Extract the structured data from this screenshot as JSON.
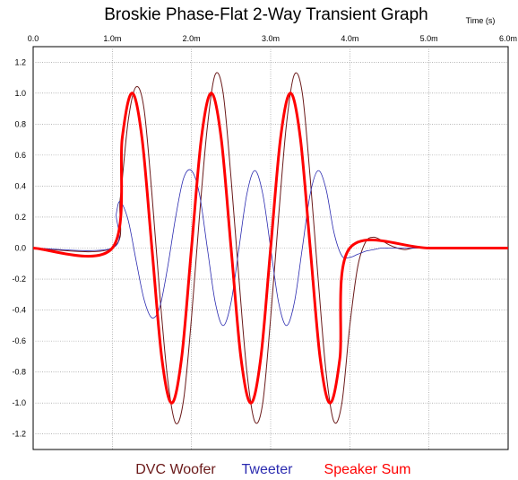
{
  "chart_data": {
    "type": "line",
    "title": "Broskie Phase-Flat 2-Way Transient Graph",
    "xlabel": "Time  (s)",
    "ylabel": "",
    "xlim": [
      0,
      6.0
    ],
    "ylim": [
      -1.3,
      1.3
    ],
    "grid": true,
    "legend_position": "bottom",
    "x_ticks": [
      {
        "value": 0,
        "label": "0.0"
      },
      {
        "value": 1,
        "label": "1.0m"
      },
      {
        "value": 2,
        "label": "2.0m"
      },
      {
        "value": 3,
        "label": "3.0m"
      },
      {
        "value": 4,
        "label": "4.0m"
      },
      {
        "value": 5,
        "label": "5.0m"
      },
      {
        "value": 6,
        "label": "6.0m"
      }
    ],
    "y_ticks": [
      {
        "value": 1.2,
        "label": "1.2"
      },
      {
        "value": 1.0,
        "label": "1.0"
      },
      {
        "value": 0.8,
        "label": "0.8"
      },
      {
        "value": 0.6,
        "label": "0.6"
      },
      {
        "value": 0.4,
        "label": "0.4"
      },
      {
        "value": 0.2,
        "label": "0.2"
      },
      {
        "value": 0.0,
        "label": "0.0"
      },
      {
        "value": -0.2,
        "label": "-0.2"
      },
      {
        "value": -0.4,
        "label": "-0.4"
      },
      {
        "value": -0.6,
        "label": "-0.6"
      },
      {
        "value": -0.8,
        "label": "-0.8"
      },
      {
        "value": -1.0,
        "label": "-1.0"
      },
      {
        "value": -1.2,
        "label": "-1.2"
      }
    ],
    "series": [
      {
        "name": "DVC Woofer",
        "color": "#6b1a1a",
        "x": [
          0,
          1.0,
          1.1,
          1.2,
          1.3,
          1.4,
          1.5,
          1.6,
          1.7,
          1.8,
          1.9,
          2.0,
          2.1,
          2.2,
          2.3,
          2.4,
          2.5,
          2.6,
          2.7,
          2.8,
          2.9,
          3.0,
          3.1,
          3.2,
          3.3,
          3.4,
          3.5,
          3.6,
          3.7,
          3.8,
          3.9,
          4.0,
          4.1,
          4.2,
          4.3,
          4.4,
          4.5,
          4.6,
          4.7,
          4.8,
          5.0,
          6.0
        ],
        "y": [
          0,
          0,
          0.32,
          0.82,
          1.04,
          0.9,
          0.35,
          -0.3,
          -0.85,
          -1.13,
          -0.98,
          -0.45,
          0.2,
          0.78,
          1.12,
          1.0,
          0.45,
          -0.2,
          -0.8,
          -1.12,
          -1.0,
          -0.45,
          0.2,
          0.8,
          1.12,
          1.0,
          0.45,
          -0.2,
          -0.8,
          -1.12,
          -1.0,
          -0.5,
          -0.12,
          0.04,
          0.07,
          0.05,
          0.02,
          0.0,
          -0.01,
          0.0,
          0,
          0
        ]
      },
      {
        "name": "Tweeter",
        "color": "#2b2bb0",
        "x": [
          0,
          1.0,
          1.05,
          1.1,
          1.2,
          1.3,
          1.4,
          1.5,
          1.6,
          1.7,
          1.8,
          1.9,
          2.0,
          2.1,
          2.2,
          2.3,
          2.4,
          2.5,
          2.6,
          2.7,
          2.8,
          2.9,
          3.0,
          3.1,
          3.2,
          3.3,
          3.4,
          3.5,
          3.6,
          3.7,
          3.8,
          3.9,
          4.0,
          4.1,
          4.2,
          4.3,
          4.4,
          4.5,
          4.6,
          4.7,
          4.8,
          5.0,
          6.0
        ],
        "y": [
          0,
          0,
          0.22,
          0.3,
          0.18,
          -0.08,
          -0.33,
          -0.45,
          -0.38,
          -0.12,
          0.2,
          0.45,
          0.5,
          0.35,
          0.0,
          -0.35,
          -0.5,
          -0.35,
          0.0,
          0.35,
          0.5,
          0.35,
          0.0,
          -0.35,
          -0.5,
          -0.35,
          0.0,
          0.35,
          0.5,
          0.38,
          0.1,
          -0.05,
          -0.06,
          -0.04,
          -0.02,
          -0.01,
          0.0,
          0,
          0,
          0,
          0,
          0,
          0
        ]
      },
      {
        "name": "Speaker Sum",
        "color": "#ff0000",
        "x": [
          0,
          1.0,
          1.125,
          1.25,
          1.375,
          1.5,
          1.625,
          1.75,
          1.875,
          2.0,
          2.125,
          2.25,
          2.375,
          2.5,
          2.625,
          2.75,
          2.875,
          3.0,
          3.125,
          3.25,
          3.375,
          3.5,
          3.625,
          3.75,
          3.875,
          4.0,
          5.0,
          6.0
        ],
        "y": [
          0,
          0,
          0.71,
          1.0,
          0.71,
          0.0,
          -0.71,
          -1.0,
          -0.71,
          0.0,
          0.71,
          1.0,
          0.71,
          0.0,
          -0.71,
          -1.0,
          -0.71,
          0.0,
          0.71,
          1.0,
          0.71,
          0.0,
          -0.71,
          -1.0,
          -0.71,
          0.0,
          0,
          0
        ]
      }
    ]
  }
}
